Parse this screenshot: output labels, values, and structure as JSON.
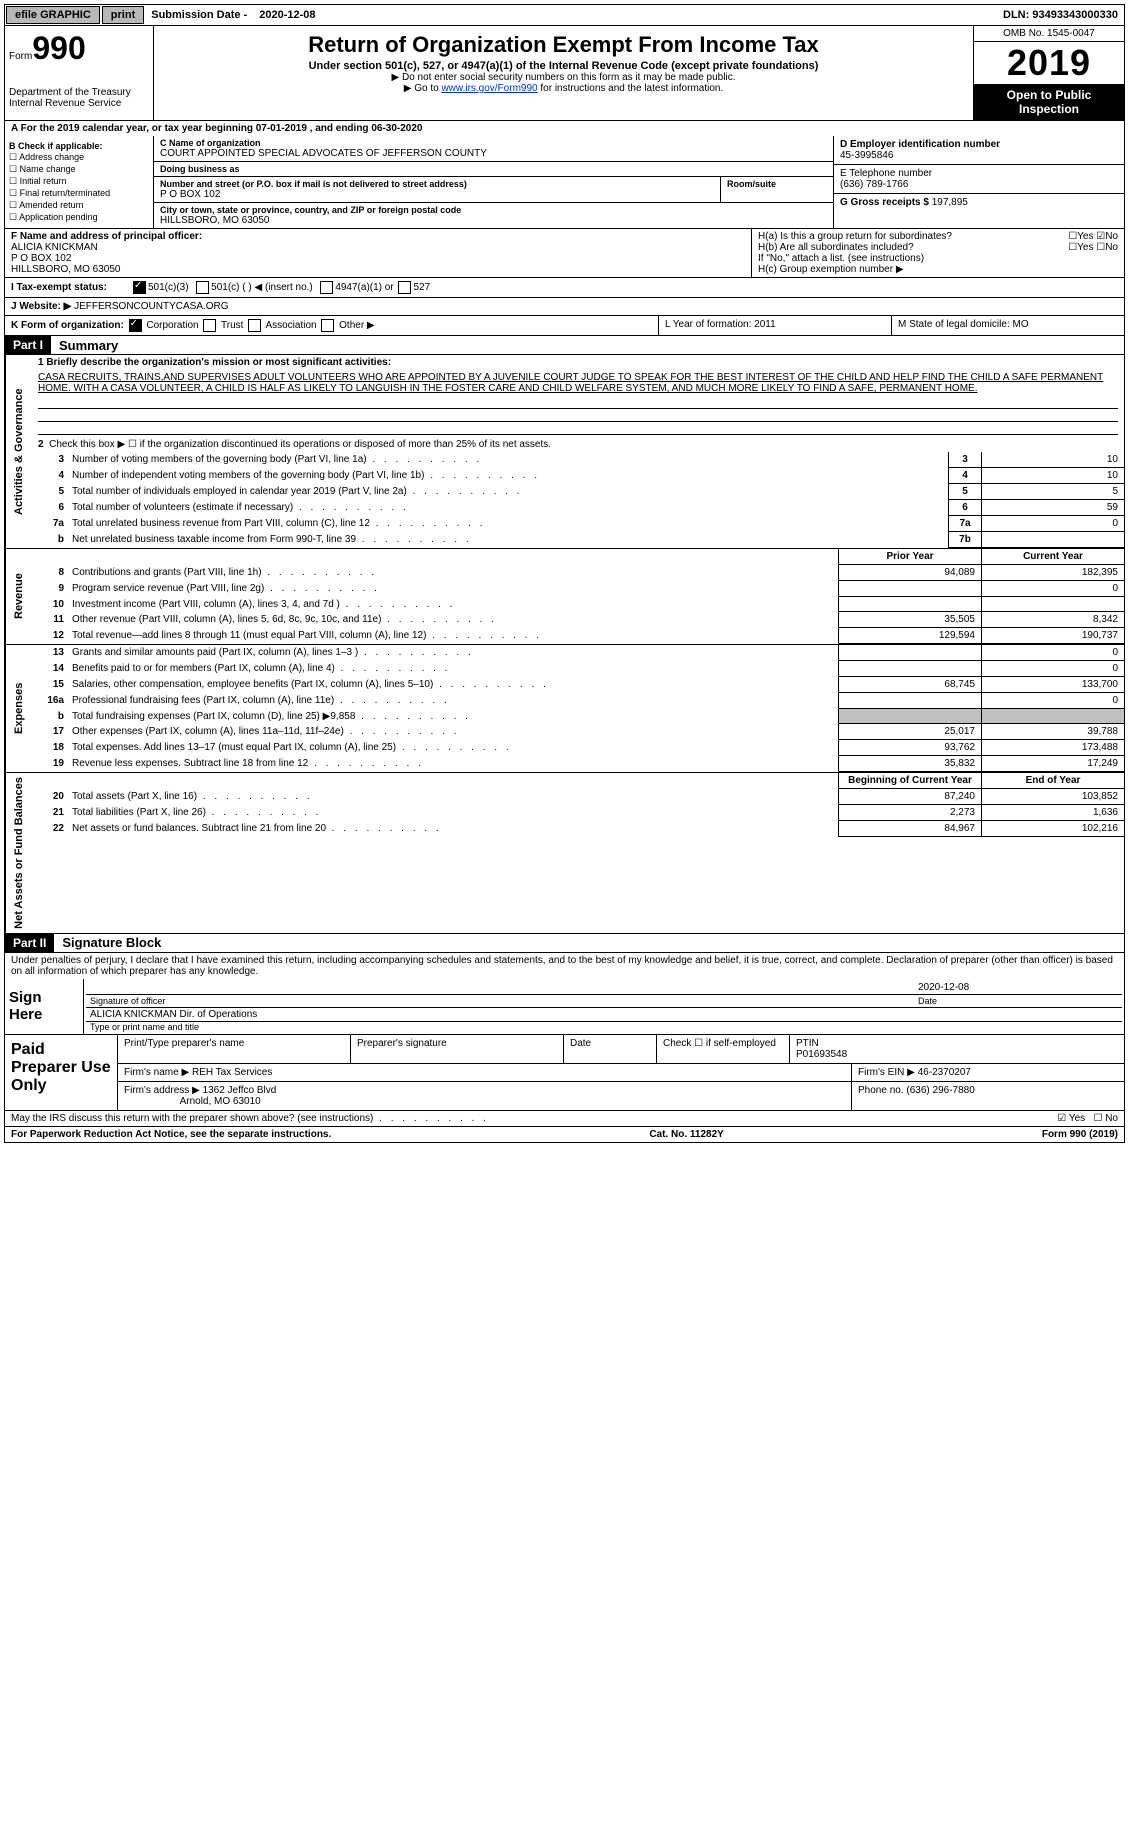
{
  "topbar": {
    "efile": "efile GRAPHIC",
    "print": "print",
    "submission_label": "Submission Date -",
    "submission_date": "2020-12-08",
    "dln_label": "DLN:",
    "dln": "93493343000330"
  },
  "header": {
    "form_label": "Form",
    "form_number": "990",
    "dept": "Department of the Treasury\nInternal Revenue Service",
    "title": "Return of Organization Exempt From Income Tax",
    "subtitle": "Under section 501(c), 527, or 4947(a)(1) of the Internal Revenue Code (except private foundations)",
    "note1": "▶ Do not enter social security numbers on this form as it may be made public.",
    "note2": "▶ Go to ",
    "link": "www.irs.gov/Form990",
    "note2b": " for instructions and the latest information.",
    "omb": "OMB No. 1545-0047",
    "year": "2019",
    "open": "Open to Public Inspection"
  },
  "period": "A For the 2019 calendar year, or tax year beginning 07-01-2019   , and ending 06-30-2020",
  "section_b": {
    "label": "B Check if applicable:",
    "items": [
      "Address change",
      "Name change",
      "Initial return",
      "Final return/terminated",
      "Amended return",
      "Application pending"
    ]
  },
  "section_c": {
    "name_label": "C Name of organization",
    "name": "COURT APPOINTED SPECIAL ADVOCATES OF JEFFERSON COUNTY",
    "dba_label": "Doing business as",
    "dba": "",
    "street_label": "Number and street (or P.O. box if mail is not delivered to street address)",
    "street": "P O BOX 102",
    "room_label": "Room/suite",
    "city_label": "City or town, state or province, country, and ZIP or foreign postal code",
    "city": "HILLSBORO, MO  63050"
  },
  "section_d": {
    "ein_label": "D Employer identification number",
    "ein": "45-3995846",
    "phone_label": "E Telephone number",
    "phone": "(636) 789-1766",
    "gross_label": "G Gross receipts $",
    "gross": "197,895"
  },
  "section_f": {
    "label": "F  Name and address of principal officer:",
    "name": "ALICIA KNICKMAN",
    "addr1": "P O BOX 102",
    "addr2": "HILLSBORO, MO  63050"
  },
  "section_h": {
    "ha": "H(a)  Is this a group return for subordinates?",
    "hb": "H(b)  Are all subordinates included?",
    "hb_note": "If \"No,\" attach a list. (see instructions)",
    "hc": "H(c)  Group exemption number ▶"
  },
  "tax_status": {
    "label_i": "I  Tax-exempt status:",
    "opt1": "501(c)(3)",
    "opt2": "501(c) (  ) ◀ (insert no.)",
    "opt3": "4947(a)(1) or",
    "opt4": "527"
  },
  "website": {
    "label": "J  Website: ▶",
    "value": "JEFFERSONCOUNTYCASA.ORG"
  },
  "section_k": {
    "label": "K Form of organization:",
    "corp": "Corporation",
    "trust": "Trust",
    "assoc": "Association",
    "other": "Other ▶"
  },
  "section_l": "L Year of formation: 2011",
  "section_m": "M State of legal domicile: MO",
  "part1": {
    "header": "Part I",
    "title": "Summary",
    "line1_label": "1  Briefly describe the organization's mission or most significant activities:",
    "mission": "CASA RECRUITS, TRAINS,AND SUPERVISES ADULT VOLUNTEERS WHO ARE APPOINTED BY A JUVENILE COURT JUDGE TO SPEAK FOR THE BEST INTEREST OF THE CHILD AND HELP FIND THE CHILD A SAFE PERMANENT HOME. WITH A CASA VOLUNTEER, A CHILD IS HALF AS LIKELY TO LANGUISH IN THE FOSTER CARE AND CHILD WELFARE SYSTEM, AND MUCH MORE LIKELY TO FIND A SAFE, PERMANENT HOME.",
    "line2": "Check this box ▶ ☐  if the organization discontinued its operations or disposed of more than 25% of its net assets.",
    "rows_a": [
      {
        "n": "3",
        "d": "Number of voting members of the governing body (Part VI, line 1a)",
        "b": "3",
        "v": "10"
      },
      {
        "n": "4",
        "d": "Number of independent voting members of the governing body (Part VI, line 1b)",
        "b": "4",
        "v": "10"
      },
      {
        "n": "5",
        "d": "Total number of individuals employed in calendar year 2019 (Part V, line 2a)",
        "b": "5",
        "v": "5"
      },
      {
        "n": "6",
        "d": "Total number of volunteers (estimate if necessary)",
        "b": "6",
        "v": "59"
      },
      {
        "n": "7a",
        "d": "Total unrelated business revenue from Part VIII, column (C), line 12",
        "b": "7a",
        "v": "0"
      },
      {
        "n": "b",
        "d": "Net unrelated business taxable income from Form 990-T, line 39",
        "b": "7b",
        "v": ""
      }
    ],
    "col_hdr_prior": "Prior Year",
    "col_hdr_curr": "Current Year",
    "revenue": [
      {
        "n": "8",
        "d": "Contributions and grants (Part VIII, line 1h)",
        "p": "94,089",
        "c": "182,395"
      },
      {
        "n": "9",
        "d": "Program service revenue (Part VIII, line 2g)",
        "p": "",
        "c": "0"
      },
      {
        "n": "10",
        "d": "Investment income (Part VIII, column (A), lines 3, 4, and 7d )",
        "p": "",
        "c": ""
      },
      {
        "n": "11",
        "d": "Other revenue (Part VIII, column (A), lines 5, 6d, 8c, 9c, 10c, and 11e)",
        "p": "35,505",
        "c": "8,342"
      },
      {
        "n": "12",
        "d": "Total revenue—add lines 8 through 11 (must equal Part VIII, column (A), line 12)",
        "p": "129,594",
        "c": "190,737"
      }
    ],
    "expenses": [
      {
        "n": "13",
        "d": "Grants and similar amounts paid (Part IX, column (A), lines 1–3 )",
        "p": "",
        "c": "0"
      },
      {
        "n": "14",
        "d": "Benefits paid to or for members (Part IX, column (A), line 4)",
        "p": "",
        "c": "0"
      },
      {
        "n": "15",
        "d": "Salaries, other compensation, employee benefits (Part IX, column (A), lines 5–10)",
        "p": "68,745",
        "c": "133,700"
      },
      {
        "n": "16a",
        "d": "Professional fundraising fees (Part IX, column (A), line 11e)",
        "p": "",
        "c": "0"
      },
      {
        "n": "b",
        "d": "Total fundraising expenses (Part IX, column (D), line 25) ▶9,858",
        "p": "shade",
        "c": "shade"
      },
      {
        "n": "17",
        "d": "Other expenses (Part IX, column (A), lines 11a–11d, 11f–24e)",
        "p": "25,017",
        "c": "39,788"
      },
      {
        "n": "18",
        "d": "Total expenses. Add lines 13–17 (must equal Part IX, column (A), line 25)",
        "p": "93,762",
        "c": "173,488"
      },
      {
        "n": "19",
        "d": "Revenue less expenses. Subtract line 18 from line 12",
        "p": "35,832",
        "c": "17,249"
      }
    ],
    "col_hdr_beg": "Beginning of Current Year",
    "col_hdr_end": "End of Year",
    "netassets": [
      {
        "n": "20",
        "d": "Total assets (Part X, line 16)",
        "p": "87,240",
        "c": "103,852"
      },
      {
        "n": "21",
        "d": "Total liabilities (Part X, line 26)",
        "p": "2,273",
        "c": "1,636"
      },
      {
        "n": "22",
        "d": "Net assets or fund balances. Subtract line 21 from line 20",
        "p": "84,967",
        "c": "102,216"
      }
    ],
    "side_ag": "Activities & Governance",
    "side_rev": "Revenue",
    "side_exp": "Expenses",
    "side_na": "Net Assets or Fund Balances"
  },
  "part2": {
    "header": "Part II",
    "title": "Signature Block",
    "decl": "Under penalties of perjury, I declare that I have examined this return, including accompanying schedules and statements, and to the best of my knowledge and belief, it is true, correct, and complete. Declaration of preparer (other than officer) is based on all information of which preparer has any knowledge.",
    "sign_here": "Sign Here",
    "sig_officer": "Signature of officer",
    "sig_date": "2020-12-08",
    "date_label": "Date",
    "sig_name": "ALICIA KNICKMAN Dir. of Operations",
    "sig_name_label": "Type or print name and title"
  },
  "preparer": {
    "label": "Paid Preparer Use Only",
    "h1": "Print/Type preparer's name",
    "h2": "Preparer's signature",
    "h3": "Date",
    "h4": "Check ☐ if self-employed",
    "h5": "PTIN",
    "ptin": "P01693548",
    "firm_name_label": "Firm's name    ▶",
    "firm_name": "REH Tax Services",
    "firm_ein_label": "Firm's EIN ▶",
    "firm_ein": "46-2370207",
    "firm_addr_label": "Firm's address ▶",
    "firm_addr": "1362 Jeffco Blvd",
    "firm_addr2": "Arnold, MO  63010",
    "phone_label": "Phone no.",
    "phone": "(636) 296-7880"
  },
  "discuss": "May the IRS discuss this return with the preparer shown above? (see instructions)",
  "footer": {
    "left": "For Paperwork Reduction Act Notice, see the separate instructions.",
    "mid": "Cat. No. 11282Y",
    "right": "Form 990 (2019)"
  }
}
